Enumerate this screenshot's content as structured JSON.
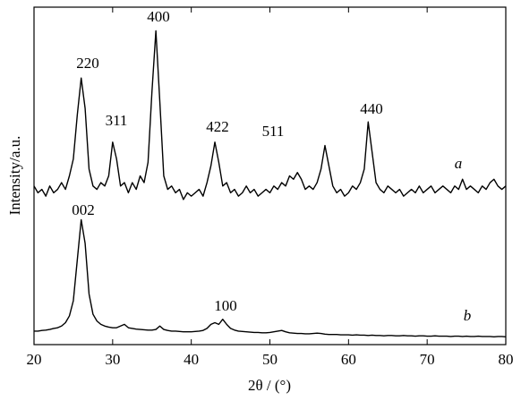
{
  "chart_data": {
    "type": "line",
    "xlabel": "2θ / (°)",
    "ylabel": "Intensity/a.u.",
    "x": [
      20,
      20.5,
      21,
      21.5,
      22,
      22.5,
      23,
      23.5,
      24,
      24.5,
      25,
      25.5,
      26,
      26.5,
      27,
      27.5,
      28,
      28.5,
      29,
      29.5,
      30,
      30.5,
      31,
      31.5,
      32,
      32.5,
      33,
      33.5,
      34,
      34.5,
      35,
      35.5,
      36,
      36.5,
      37,
      37.5,
      38,
      38.5,
      39,
      39.5,
      40,
      40.5,
      41,
      41.5,
      42,
      42.5,
      43,
      43.5,
      44,
      44.5,
      45,
      45.5,
      46,
      46.5,
      47,
      47.5,
      48,
      48.5,
      49,
      49.5,
      50,
      50.5,
      51,
      51.5,
      52,
      52.5,
      53,
      53.5,
      54,
      54.5,
      55,
      55.5,
      56,
      56.5,
      57,
      57.5,
      58,
      58.5,
      59,
      59.5,
      60,
      60.5,
      61,
      61.5,
      62,
      62.5,
      63,
      63.5,
      64,
      64.5,
      65,
      65.5,
      66,
      66.5,
      67,
      67.5,
      68,
      68.5,
      69,
      69.5,
      70,
      70.5,
      71,
      71.5,
      72,
      72.5,
      73,
      73.5,
      74,
      74.5,
      75,
      75.5,
      76,
      76.5,
      77,
      77.5,
      78,
      78.5,
      79,
      79.5,
      80
    ],
    "series": [
      {
        "name": "a",
        "color": "#000000",
        "peak_labels": [
          "220",
          "311",
          "400",
          "422",
          "511",
          "440"
        ],
        "values": [
          47,
          45,
          46,
          44,
          47,
          45,
          46,
          48,
          46,
          50,
          55,
          68,
          79,
          70,
          52,
          47,
          46,
          48,
          47,
          50,
          60,
          55,
          47,
          48,
          45,
          48,
          46,
          50,
          48,
          54,
          75,
          93,
          72,
          50,
          46,
          47,
          45,
          46,
          43,
          45,
          44,
          45,
          46,
          44,
          48,
          53,
          60,
          54,
          47,
          48,
          45,
          46,
          44,
          45,
          47,
          45,
          46,
          44,
          45,
          46,
          45,
          47,
          46,
          48,
          47,
          50,
          49,
          51,
          49,
          46,
          47,
          46,
          48,
          52,
          59,
          53,
          47,
          45,
          46,
          44,
          45,
          47,
          46,
          48,
          52,
          66,
          57,
          48,
          46,
          45,
          47,
          46,
          45,
          46,
          44,
          45,
          46,
          45,
          47,
          45,
          46,
          47,
          45,
          46,
          47,
          46,
          45,
          47,
          46,
          49,
          46,
          47,
          46,
          45,
          47,
          46,
          48,
          49,
          47,
          46,
          47
        ]
      },
      {
        "name": "b",
        "color": "#000000",
        "peak_labels": [
          "002",
          "100"
        ],
        "values": [
          4,
          4,
          4.2,
          4.3,
          4.5,
          4.8,
          5,
          5.5,
          6.5,
          8.5,
          13,
          25,
          37,
          30,
          15,
          9,
          7,
          6,
          5.5,
          5.2,
          5,
          5,
          5.5,
          6,
          5,
          4.8,
          4.6,
          4.5,
          4.4,
          4.3,
          4.3,
          4.5,
          5.5,
          4.5,
          4.2,
          4,
          4,
          3.9,
          3.8,
          3.8,
          3.8,
          3.9,
          4,
          4.2,
          4.8,
          6,
          6.5,
          6,
          7.5,
          6,
          4.8,
          4.3,
          4,
          3.9,
          3.8,
          3.7,
          3.6,
          3.6,
          3.5,
          3.5,
          3.6,
          3.8,
          4,
          4.2,
          3.8,
          3.5,
          3.4,
          3.3,
          3.3,
          3.2,
          3.2,
          3.3,
          3.4,
          3.3,
          3.1,
          3,
          3,
          3,
          2.9,
          2.9,
          2.9,
          2.8,
          2.9,
          2.8,
          2.8,
          2.7,
          2.8,
          2.7,
          2.7,
          2.6,
          2.7,
          2.7,
          2.6,
          2.6,
          2.7,
          2.6,
          2.6,
          2.5,
          2.6,
          2.6,
          2.5,
          2.5,
          2.6,
          2.5,
          2.5,
          2.5,
          2.4,
          2.5,
          2.5,
          2.4,
          2.5,
          2.4,
          2.4,
          2.5,
          2.4,
          2.4,
          2.4,
          2.3,
          2.4,
          2.4,
          2.3
        ]
      }
    ],
    "xlim": [
      20,
      80
    ],
    "xticks": [
      20,
      30,
      40,
      50,
      60,
      70,
      80
    ],
    "ylim": [
      0,
      100
    ]
  }
}
